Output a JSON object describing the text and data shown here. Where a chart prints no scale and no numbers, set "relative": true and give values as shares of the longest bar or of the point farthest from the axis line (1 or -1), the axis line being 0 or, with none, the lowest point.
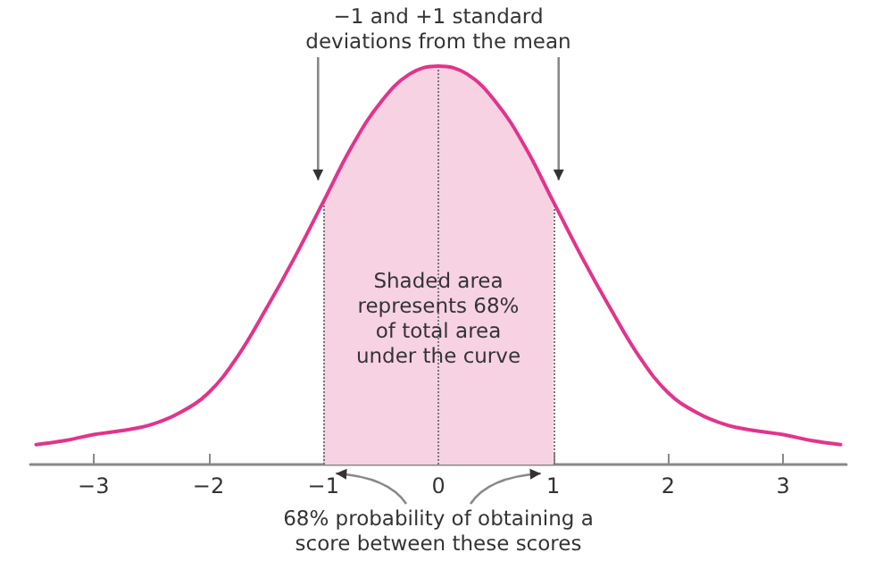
{
  "chart_data": {
    "type": "line",
    "relative": true,
    "x": [
      -3.5,
      -3.25,
      -3,
      -2.75,
      -2.5,
      -2.25,
      -2,
      -1.75,
      -1.5,
      -1.25,
      -1,
      -0.75,
      -0.5,
      -0.25,
      0,
      0.25,
      0.5,
      0.75,
      1,
      1.25,
      1.5,
      1.75,
      2,
      2.25,
      2.5,
      2.75,
      3,
      3.25,
      3.5
    ],
    "series": [
      {
        "color": "#e0358c",
        "values": [
          0.05,
          0.06,
          0.075,
          0.085,
          0.1,
          0.13,
          0.18,
          0.27,
          0.39,
          0.52,
          0.66,
          0.8,
          0.91,
          0.98,
          1,
          0.98,
          0.91,
          0.8,
          0.66,
          0.52,
          0.39,
          0.27,
          0.18,
          0.13,
          0.1,
          0.085,
          0.075,
          0.06,
          0.05
        ]
      }
    ],
    "xlim": [
      -3.55,
      3.55
    ],
    "xticks": [
      {
        "value": -3,
        "label": "−3"
      },
      {
        "value": -2,
        "label": "−2"
      },
      {
        "value": -1,
        "label": "−1"
      },
      0,
      1,
      2,
      3
    ],
    "marker": "none",
    "line_style": "solid",
    "bands": [
      {
        "axis": "x",
        "from": -1,
        "to": 1,
        "label": "Shaded area represents 68% of total area under the curve",
        "color": "#f7d2e3"
      }
    ],
    "ref_lines": [
      {
        "axis": "x",
        "value": -1,
        "line_style": "dotted"
      },
      {
        "axis": "x",
        "value": 0,
        "line_style": "dotted"
      },
      {
        "axis": "x",
        "value": 1,
        "line_style": "dotted"
      }
    ],
    "annotations": [
      "−1 and +1 standard deviations from the mean",
      "68% probability of obtaining a score between these scores"
    ]
  }
}
